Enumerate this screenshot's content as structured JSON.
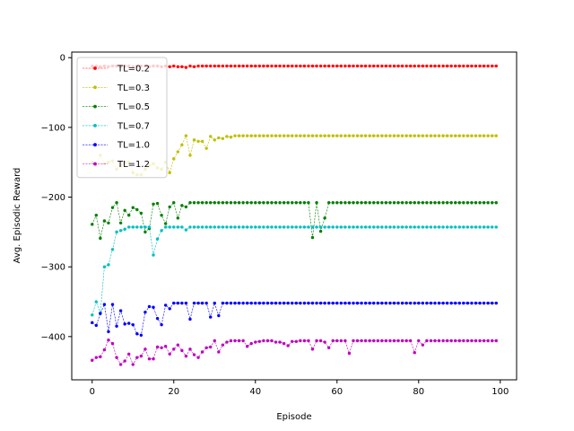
{
  "chart_data": {
    "type": "line",
    "title": "",
    "xlabel": "Episode",
    "ylabel": "Avg. Episodic Reward",
    "xlim": [
      -5,
      104
    ],
    "ylim": [
      -462,
      8
    ],
    "xticks": [
      0,
      20,
      40,
      60,
      80,
      100
    ],
    "yticks": [
      0,
      -100,
      -200,
      -300,
      -400
    ],
    "ytick_labels": [
      "0",
      "−100",
      "−200",
      "−300",
      "−400"
    ],
    "grid": false,
    "legend_position": "top-left",
    "series": [
      {
        "name": "TL=0.2",
        "color": "#ff0000",
        "values": [
          -12,
          -12,
          -13,
          -12,
          -13,
          -12,
          -12,
          -13,
          -12,
          -12,
          -13,
          -12,
          -12,
          -12,
          -13,
          -12,
          -12,
          -13,
          -12,
          -13,
          -12,
          -13,
          -13,
          -14,
          -12,
          -13,
          -12,
          -12,
          -12,
          -12,
          -12,
          -12,
          -12,
          -12,
          -12,
          -12,
          -12,
          -12,
          -12,
          -12,
          -12,
          -12,
          -12,
          -12,
          -12,
          -12,
          -12,
          -12,
          -12,
          -12,
          -12,
          -12,
          -12,
          -12,
          -12,
          -12,
          -12,
          -12,
          -12,
          -12,
          -12,
          -12,
          -12,
          -12,
          -12,
          -12,
          -12,
          -12,
          -12,
          -12,
          -12,
          -12,
          -12,
          -12,
          -12,
          -12,
          -12,
          -12,
          -12,
          -12,
          -12,
          -12,
          -12,
          -12,
          -12,
          -12,
          -12,
          -12,
          -12,
          -12,
          -12,
          -12,
          -12,
          -12,
          -12,
          -12,
          -12,
          -12,
          -12,
          -12
        ]
      },
      {
        "name": "TL=0.3",
        "color": "#bfbf00",
        "values": [
          -150,
          -155,
          -140,
          -152,
          -150,
          -148,
          -160,
          -155,
          -150,
          -150,
          -165,
          -168,
          -168,
          -160,
          -155,
          -152,
          -158,
          -160,
          -150,
          -165,
          -145,
          -135,
          -125,
          -112,
          -140,
          -118,
          -120,
          -120,
          -130,
          -113,
          -118,
          -115,
          -116,
          -113,
          -114,
          -112,
          -112,
          -112,
          -112,
          -112,
          -112,
          -112,
          -112,
          -112,
          -112,
          -112,
          -112,
          -112,
          -112,
          -112,
          -112,
          -112,
          -112,
          -112,
          -112,
          -112,
          -112,
          -112,
          -112,
          -112,
          -112,
          -112,
          -112,
          -112,
          -112,
          -112,
          -112,
          -112,
          -112,
          -112,
          -112,
          -112,
          -112,
          -112,
          -112,
          -112,
          -112,
          -112,
          -112,
          -112,
          -112,
          -112,
          -112,
          -112,
          -112,
          -112,
          -112,
          -112,
          -112,
          -112,
          -112,
          -112,
          -112,
          -112,
          -112,
          -112,
          -112,
          -112,
          -112,
          -112
        ]
      },
      {
        "name": "TL=0.5",
        "color": "#008000",
        "values": [
          -239,
          -226,
          -259,
          -234,
          -237,
          -215,
          -208,
          -237,
          -219,
          -226,
          -215,
          -218,
          -223,
          -250,
          -245,
          -210,
          -209,
          -226,
          -238,
          -214,
          -208,
          -230,
          -212,
          -214,
          -208,
          -208,
          -208,
          -208,
          -208,
          -208,
          -208,
          -208,
          -208,
          -208,
          -208,
          -208,
          -208,
          -208,
          -208,
          -208,
          -208,
          -208,
          -208,
          -208,
          -208,
          -208,
          -208,
          -208,
          -208,
          -208,
          -208,
          -208,
          -208,
          -208,
          -258,
          -208,
          -249,
          -230,
          -208,
          -208,
          -208,
          -208,
          -208,
          -208,
          -208,
          -208,
          -208,
          -208,
          -208,
          -208,
          -208,
          -208,
          -208,
          -208,
          -208,
          -208,
          -208,
          -208,
          -208,
          -208,
          -208,
          -208,
          -208,
          -208,
          -208,
          -208,
          -208,
          -208,
          -208,
          -208,
          -208,
          -208,
          -208,
          -208,
          -208,
          -208,
          -208,
          -208,
          -208,
          -208
        ]
      },
      {
        "name": "TL=0.7",
        "color": "#00bfbf",
        "values": [
          -369,
          -350,
          -366,
          -300,
          -297,
          -275,
          -250,
          -248,
          -246,
          -243,
          -243,
          -243,
          -243,
          -243,
          -243,
          -283,
          -260,
          -248,
          -243,
          -243,
          -243,
          -243,
          -243,
          -247,
          -243,
          -243,
          -243,
          -243,
          -243,
          -243,
          -243,
          -243,
          -243,
          -243,
          -243,
          -243,
          -243,
          -243,
          -243,
          -243,
          -243,
          -243,
          -243,
          -243,
          -243,
          -243,
          -243,
          -243,
          -243,
          -243,
          -243,
          -243,
          -243,
          -243,
          -243,
          -243,
          -243,
          -243,
          -243,
          -243,
          -243,
          -243,
          -243,
          -243,
          -243,
          -243,
          -243,
          -243,
          -243,
          -243,
          -243,
          -243,
          -243,
          -243,
          -243,
          -243,
          -243,
          -243,
          -243,
          -243,
          -243,
          -243,
          -243,
          -243,
          -243,
          -243,
          -243,
          -243,
          -243,
          -243,
          -243,
          -243,
          -243,
          -243,
          -243,
          -243,
          -243,
          -243,
          -243,
          -243
        ]
      },
      {
        "name": "TL=1.0",
        "color": "#0000ff",
        "values": [
          -380,
          -384,
          -367,
          -354,
          -393,
          -354,
          -385,
          -363,
          -382,
          -381,
          -383,
          -396,
          -398,
          -365,
          -357,
          -358,
          -374,
          -383,
          -355,
          -360,
          -352,
          -352,
          -352,
          -352,
          -375,
          -352,
          -352,
          -352,
          -352,
          -372,
          -352,
          -370,
          -352,
          -352,
          -352,
          -352,
          -352,
          -352,
          -352,
          -352,
          -352,
          -352,
          -352,
          -352,
          -352,
          -352,
          -352,
          -352,
          -352,
          -352,
          -352,
          -352,
          -352,
          -352,
          -352,
          -352,
          -352,
          -352,
          -352,
          -352,
          -352,
          -352,
          -352,
          -352,
          -352,
          -352,
          -352,
          -352,
          -352,
          -352,
          -352,
          -352,
          -352,
          -352,
          -352,
          -352,
          -352,
          -352,
          -352,
          -352,
          -352,
          -352,
          -352,
          -352,
          -352,
          -352,
          -352,
          -352,
          -352,
          -352,
          -352,
          -352,
          -352,
          -352,
          -352,
          -352,
          -352,
          -352,
          -352,
          -352
        ]
      },
      {
        "name": "TL=1.2",
        "color": "#bf00bf",
        "values": [
          -434,
          -430,
          -429,
          -419,
          -405,
          -410,
          -430,
          -440,
          -435,
          -425,
          -440,
          -430,
          -428,
          -418,
          -432,
          -432,
          -415,
          -416,
          -414,
          -425,
          -418,
          -412,
          -420,
          -428,
          -418,
          -426,
          -430,
          -422,
          -416,
          -415,
          -406,
          -422,
          -412,
          -408,
          -406,
          -406,
          -406,
          -406,
          -414,
          -410,
          -408,
          -407,
          -406,
          -406,
          -406,
          -408,
          -408,
          -410,
          -413,
          -407,
          -407,
          -406,
          -406,
          -406,
          -418,
          -406,
          -406,
          -408,
          -416,
          -406,
          -406,
          -406,
          -406,
          -424,
          -406,
          -406,
          -406,
          -406,
          -406,
          -406,
          -406,
          -406,
          -406,
          -406,
          -406,
          -406,
          -406,
          -406,
          -406,
          -423,
          -406,
          -412,
          -406,
          -406,
          -406,
          -406,
          -406,
          -406,
          -406,
          -406,
          -406,
          -406,
          -406,
          -406,
          -406,
          -406,
          -406,
          -406,
          -406,
          -406
        ]
      }
    ]
  }
}
